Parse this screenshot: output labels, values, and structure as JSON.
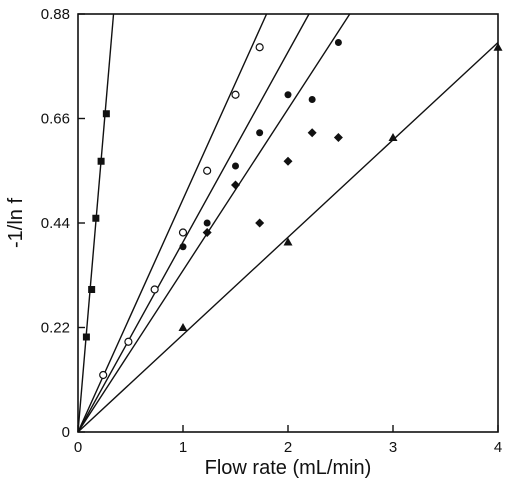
{
  "chart_data": {
    "type": "scatter",
    "xlabel": "Flow rate (mL/min)",
    "ylabel": "-1/ln f",
    "xlim": [
      0,
      4
    ],
    "ylim": [
      0,
      0.88
    ],
    "x_ticks": [
      0,
      1,
      2,
      3,
      4
    ],
    "x_tick_labels": [
      "0",
      "1",
      "2",
      "3",
      "4"
    ],
    "y_ticks": [
      0,
      0.22,
      0.44,
      0.66,
      0.88
    ],
    "y_tick_labels": [
      "0",
      "0.22",
      "0.44",
      "0.66",
      "0.88"
    ],
    "grid": false,
    "series": [
      {
        "marker": "filled-square",
        "color": "#111111",
        "x": [
          0.08,
          0.13,
          0.17,
          0.22,
          0.27
        ],
        "y": [
          0.2,
          0.3,
          0.45,
          0.57,
          0.67
        ],
        "fit_slope": 2.6
      },
      {
        "marker": "open-circle",
        "color": "#111111",
        "x": [
          0.24,
          0.48,
          0.73,
          1.0,
          1.23,
          1.5,
          1.73
        ],
        "y": [
          0.12,
          0.19,
          0.3,
          0.42,
          0.55,
          0.71,
          0.81
        ],
        "fit_slope": 0.49
      },
      {
        "marker": "filled-circle",
        "color": "#111111",
        "x": [
          1.0,
          1.23,
          1.5,
          1.73,
          2.0,
          2.23,
          2.48
        ],
        "y": [
          0.39,
          0.44,
          0.56,
          0.63,
          0.71,
          0.7,
          0.82
        ],
        "fit_slope": 0.4
      },
      {
        "marker": "filled-diamond",
        "color": "#111111",
        "x": [
          1.23,
          1.5,
          1.73,
          2.0,
          2.23,
          2.48
        ],
        "y": [
          0.42,
          0.52,
          0.44,
          0.57,
          0.63,
          0.62
        ],
        "fit_slope": 0.34
      },
      {
        "marker": "filled-triangle",
        "color": "#111111",
        "x": [
          1.0,
          2.0,
          3.0,
          4.0
        ],
        "y": [
          0.22,
          0.4,
          0.62,
          0.81
        ],
        "fit_slope": 0.205
      }
    ]
  }
}
